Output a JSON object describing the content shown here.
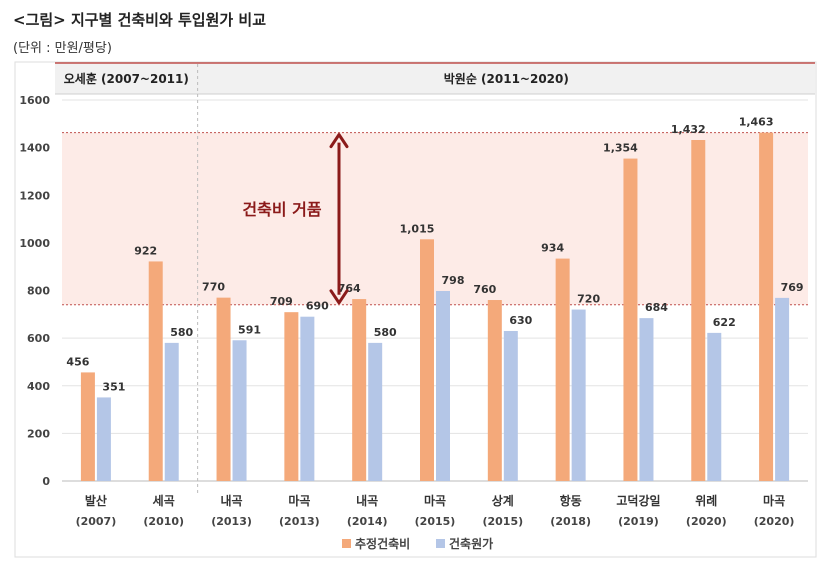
{
  "figure": {
    "title": "<그림> 지구별 건축비와 투입원가 비교",
    "unit": "(단위 : 만원/평당)"
  },
  "periods": [
    {
      "label": "오세훈 (2007~2011)"
    },
    {
      "label": "박원순 (2011~2020)"
    }
  ],
  "annotation": {
    "label": "건축비 거품",
    "from_value": 740,
    "to_value": 1463
  },
  "colors": {
    "estimated": "#F4A97A",
    "cost": "#B4C6E7",
    "band": "#FDEBE7",
    "arrow": "#8B1A1A",
    "header_rule": "#C0504D"
  },
  "chart_data": {
    "type": "bar",
    "categories": [
      [
        "발산",
        "(2007)"
      ],
      [
        "세곡",
        "(2010)"
      ],
      [
        "내곡",
        "(2013)"
      ],
      [
        "마곡",
        "(2013)"
      ],
      [
        "내곡",
        "(2014)"
      ],
      [
        "마곡",
        "(2015)"
      ],
      [
        "상계",
        "(2015)"
      ],
      [
        "항동",
        "(2018)"
      ],
      [
        "고덕강일",
        "(2019)"
      ],
      [
        "위례",
        "(2020)"
      ],
      [
        "마곡",
        "(2020)"
      ]
    ],
    "series": [
      {
        "name": "추정건축비",
        "values": [
          456,
          922,
          770,
          709,
          764,
          1015,
          760,
          934,
          1354,
          1432,
          1463
        ],
        "labels": [
          "456",
          "922",
          "770",
          "709",
          "764",
          "1,015",
          "760",
          "934",
          "1,354",
          "1,432",
          "1,463"
        ]
      },
      {
        "name": "건축원가",
        "values": [
          351,
          580,
          591,
          690,
          580,
          798,
          630,
          720,
          684,
          622,
          769
        ],
        "labels": [
          "351",
          "580",
          "591",
          "690",
          "580",
          "798",
          "630",
          "720",
          "684",
          "622",
          "769"
        ]
      }
    ],
    "ylim": [
      0,
      1600
    ],
    "yticks": [
      "0",
      "200",
      "400",
      "600",
      "800",
      "1000",
      "1200",
      "1400",
      "1600"
    ],
    "grid": true,
    "legend": "bottom-center"
  }
}
